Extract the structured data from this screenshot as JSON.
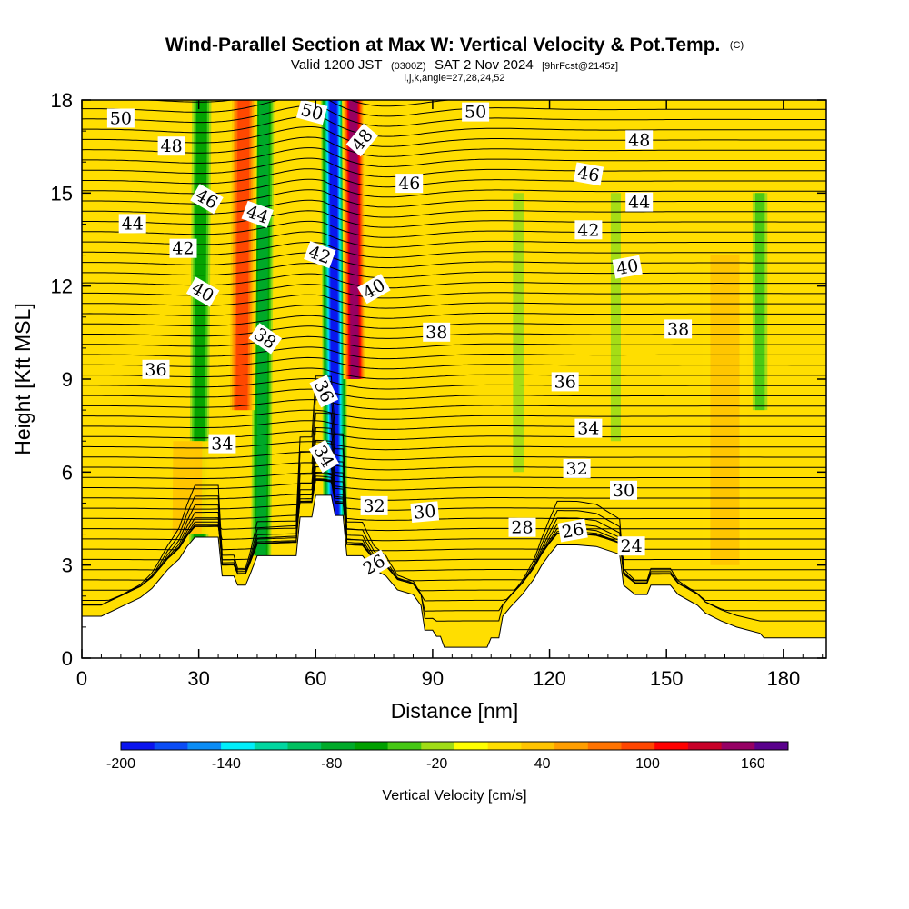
{
  "chart_data": {
    "type": "heatmap",
    "title": "Wind-Parallel Section at Max W: Vertical Velocity & Pot.Temp.",
    "title_mark": "(C)",
    "subtitle": {
      "valid": "Valid 1200 JST",
      "z": "(0300Z)",
      "date": "SAT 2 Nov 2024",
      "fcst": "[9hrFcst@2145z]"
    },
    "subtitle2": "i,j,k,angle=27,28,24,52",
    "xlabel": "Distance [nm]",
    "ylabel": "Height [Kft MSL]",
    "xlim": [
      0,
      191
    ],
    "ylim": [
      0,
      18
    ],
    "x_ticks": [
      "0",
      "30",
      "60",
      "90",
      "120",
      "150",
      "180"
    ],
    "y_ticks": [
      "0",
      "3",
      "6",
      "9",
      "12",
      "15",
      "18"
    ],
    "colorbar": {
      "label": "Vertical Velocity [cm/s]",
      "tick_labels": [
        "-200",
        "-140",
        "-80",
        "-20",
        "40",
        "100",
        "160"
      ],
      "range": [
        -200,
        180
      ],
      "step": 20,
      "colors": [
        "#0a14ee",
        "#0a4cf4",
        "#0a8cf4",
        "#00eefa",
        "#00d6a0",
        "#00c060",
        "#00aa2a",
        "#00a000",
        "#46c814",
        "#a0dc16",
        "#ffff00",
        "#ffde00",
        "#ffc400",
        "#ff9e00",
        "#ff7300",
        "#ff4600",
        "#ff0000",
        "#c80028",
        "#960064",
        "#5a008c"
      ]
    },
    "terrain_height_kft": [
      [
        0,
        1.35
      ],
      [
        5,
        1.35
      ],
      [
        10,
        1.65
      ],
      [
        15,
        1.95
      ],
      [
        18,
        2.25
      ],
      [
        20,
        2.55
      ],
      [
        22,
        2.85
      ],
      [
        25,
        3.2
      ],
      [
        27,
        3.6
      ],
      [
        29,
        3.9
      ],
      [
        35,
        3.9
      ],
      [
        36,
        2.65
      ],
      [
        39,
        2.65
      ],
      [
        40,
        2.35
      ],
      [
        42,
        2.35
      ],
      [
        43,
        2.65
      ],
      [
        45,
        3.3
      ],
      [
        55,
        3.3
      ],
      [
        56,
        4.55
      ],
      [
        59,
        4.55
      ],
      [
        60,
        5.25
      ],
      [
        64,
        5.25
      ],
      [
        65,
        4.6
      ],
      [
        67,
        4.6
      ],
      [
        68,
        3.3
      ],
      [
        72,
        3.3
      ],
      [
        75,
        2.85
      ],
      [
        78,
        2.65
      ],
      [
        81,
        2.2
      ],
      [
        85,
        2.05
      ],
      [
        87,
        1.7
      ],
      [
        88,
        0.9
      ],
      [
        90,
        0.9
      ],
      [
        91,
        0.7
      ],
      [
        92,
        0.7
      ],
      [
        93,
        0.35
      ],
      [
        104,
        0.35
      ],
      [
        105,
        0.65
      ],
      [
        107,
        0.65
      ],
      [
        108,
        1.35
      ],
      [
        110,
        1.65
      ],
      [
        113,
        2.05
      ],
      [
        116,
        2.55
      ],
      [
        118,
        3.0
      ],
      [
        120,
        3.35
      ],
      [
        122,
        3.65
      ],
      [
        127,
        3.65
      ],
      [
        132,
        3.6
      ],
      [
        138,
        3.35
      ],
      [
        139,
        2.35
      ],
      [
        142,
        2.05
      ],
      [
        145,
        2.05
      ],
      [
        146,
        2.35
      ],
      [
        151,
        2.35
      ],
      [
        153,
        2.05
      ],
      [
        158,
        1.7
      ],
      [
        160,
        1.45
      ],
      [
        164,
        1.2
      ],
      [
        168,
        1.0
      ],
      [
        174,
        0.8
      ],
      [
        175,
        0.65
      ],
      [
        191,
        0.65
      ]
    ],
    "velocity_features": [
      {
        "x": 30,
        "width": 1.5,
        "peak": -70,
        "ybot": 3.6,
        "ytop": 18
      },
      {
        "x": 46,
        "width": 1.5,
        "peak": -90,
        "ybot": 3.3,
        "ytop": 18
      },
      {
        "x": 65,
        "width": 1.7,
        "peak": -200,
        "ybot": 4.6,
        "ytop": 18
      },
      {
        "x": 70,
        "width": 1.6,
        "peak": 170,
        "ybot": 9,
        "ytop": 18
      },
      {
        "x": 41,
        "width": 2.0,
        "peak": 110,
        "ybot": 8,
        "ytop": 18
      },
      {
        "x": 112,
        "width": 1.0,
        "peak": -30,
        "ybot": 6,
        "ytop": 15
      },
      {
        "x": 137,
        "width": 1.0,
        "peak": -25,
        "ybot": 7,
        "ytop": 15
      },
      {
        "x": 174,
        "width": 1.3,
        "peak": -40,
        "ybot": 8,
        "ytop": 15
      },
      {
        "x": 165,
        "width": 4.0,
        "peak": 40,
        "ybot": 3,
        "ytop": 13
      },
      {
        "x": 27,
        "width": 4.0,
        "peak": 40,
        "ybot": 4,
        "ytop": 7
      }
    ],
    "potential_temperature_contours_K": {
      "interval": 1,
      "labeled": [
        50,
        48,
        46,
        44,
        42,
        40,
        38,
        36,
        34,
        32,
        30,
        28,
        26,
        24
      ]
    },
    "contour_labels": [
      {
        "text": "50",
        "x": 10,
        "y": 17.4,
        "rot": 0
      },
      {
        "text": "48",
        "x": 23,
        "y": 16.5,
        "rot": 0
      },
      {
        "text": "46",
        "x": 32,
        "y": 14.8,
        "rot": 30
      },
      {
        "text": "44",
        "x": 13,
        "y": 14.0,
        "rot": 0
      },
      {
        "text": "44",
        "x": 45,
        "y": 14.3,
        "rot": 20
      },
      {
        "text": "42",
        "x": 26,
        "y": 13.2,
        "rot": 0
      },
      {
        "text": "40",
        "x": 31,
        "y": 11.8,
        "rot": 30
      },
      {
        "text": "38",
        "x": 47,
        "y": 10.3,
        "rot": 35
      },
      {
        "text": "36",
        "x": 19,
        "y": 9.3,
        "rot": 0
      },
      {
        "text": "34",
        "x": 36,
        "y": 6.9,
        "rot": 0
      },
      {
        "text": "50",
        "x": 59,
        "y": 17.6,
        "rot": 15
      },
      {
        "text": "48",
        "x": 72,
        "y": 16.7,
        "rot": -50
      },
      {
        "text": "42",
        "x": 61,
        "y": 13.0,
        "rot": 20
      },
      {
        "text": "36",
        "x": 62,
        "y": 8.6,
        "rot": 65
      },
      {
        "text": "34",
        "x": 62,
        "y": 6.5,
        "rot": 60
      },
      {
        "text": "40",
        "x": 75,
        "y": 11.9,
        "rot": -30
      },
      {
        "text": "46",
        "x": 84,
        "y": 15.3,
        "rot": 0
      },
      {
        "text": "50",
        "x": 101,
        "y": 17.6,
        "rot": 0
      },
      {
        "text": "38",
        "x": 91,
        "y": 10.5,
        "rot": 0
      },
      {
        "text": "32",
        "x": 75,
        "y": 4.9,
        "rot": 0
      },
      {
        "text": "30",
        "x": 88,
        "y": 4.7,
        "rot": -5
      },
      {
        "text": "26",
        "x": 75,
        "y": 3.0,
        "rot": -30
      },
      {
        "text": "28",
        "x": 113,
        "y": 4.2,
        "rot": 0
      },
      {
        "text": "26",
        "x": 126,
        "y": 4.1,
        "rot": -10
      },
      {
        "text": "36",
        "x": 124,
        "y": 8.9,
        "rot": 0
      },
      {
        "text": "34",
        "x": 130,
        "y": 7.4,
        "rot": 0
      },
      {
        "text": "32",
        "x": 127,
        "y": 6.1,
        "rot": 0
      },
      {
        "text": "30",
        "x": 139,
        "y": 5.4,
        "rot": 0
      },
      {
        "text": "24",
        "x": 141,
        "y": 3.6,
        "rot": 0
      },
      {
        "text": "48",
        "x": 143,
        "y": 16.7,
        "rot": 0
      },
      {
        "text": "46",
        "x": 130,
        "y": 15.6,
        "rot": 10
      },
      {
        "text": "44",
        "x": 143,
        "y": 14.7,
        "rot": 0
      },
      {
        "text": "42",
        "x": 130,
        "y": 13.8,
        "rot": 0
      },
      {
        "text": "40",
        "x": 140,
        "y": 12.6,
        "rot": -10
      },
      {
        "text": "38",
        "x": 153,
        "y": 10.6,
        "rot": 0
      }
    ]
  }
}
